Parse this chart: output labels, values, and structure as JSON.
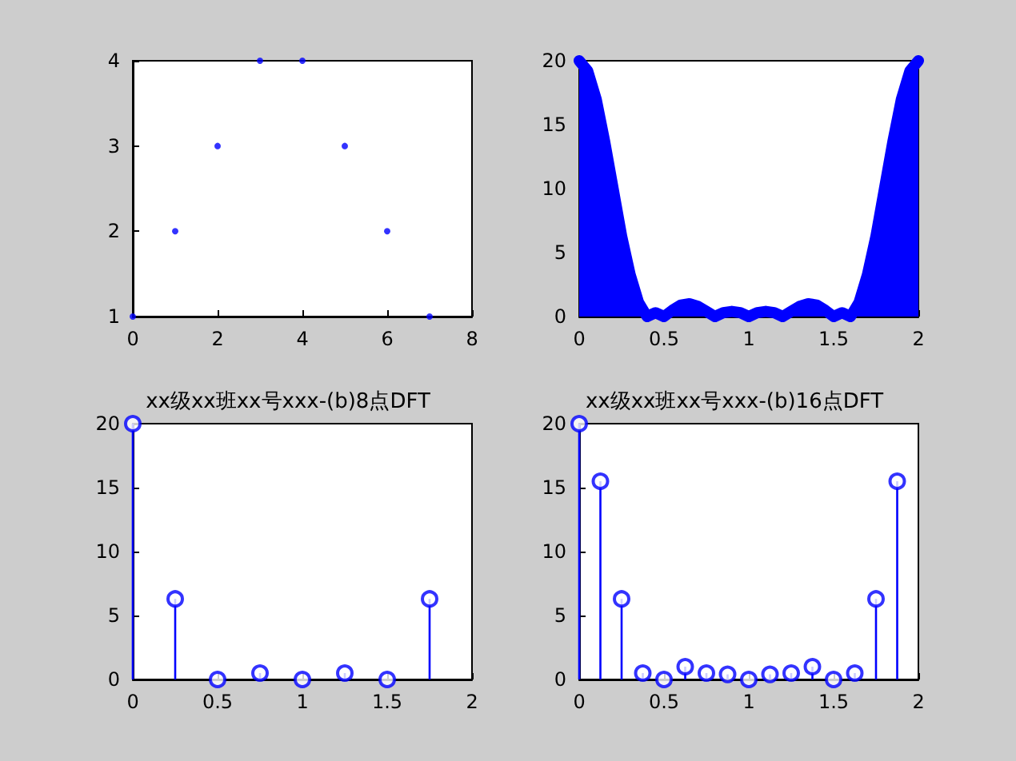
{
  "chart_data": [
    {
      "type": "scatter",
      "x": [
        0,
        1,
        2,
        3,
        4,
        5,
        6,
        7
      ],
      "values": [
        1,
        2,
        3,
        4,
        4,
        3,
        2,
        1
      ],
      "color": "#0000ff",
      "marker": "circle",
      "xlim": [
        0,
        8
      ],
      "xticks": [
        0,
        2,
        4,
        6,
        8
      ],
      "ylim": [
        1,
        4
      ],
      "yticks": [
        1,
        2,
        3,
        4
      ]
    },
    {
      "type": "area",
      "x": [
        0,
        0.05,
        0.1,
        0.15,
        0.2,
        0.25,
        0.3,
        0.35,
        0.4,
        0.45,
        0.5,
        0.55,
        0.6,
        0.65,
        0.7,
        0.75,
        0.8,
        0.85,
        0.9,
        0.95,
        1,
        1.05,
        1.1,
        1.15,
        1.2,
        1.25,
        1.3,
        1.35,
        1.4,
        1.45,
        1.5,
        1.55,
        1.6,
        1.65,
        1.7,
        1.75,
        1.8,
        1.85,
        1.9,
        1.95,
        2
      ],
      "values": [
        20,
        19.2,
        17,
        13.7,
        10,
        6.3,
        3.3,
        1.1,
        0,
        0.3,
        0,
        0.5,
        0.9,
        1,
        0.8,
        0.4,
        0,
        0.3,
        0.4,
        0.3,
        0,
        0.3,
        0.4,
        0.3,
        0,
        0.4,
        0.8,
        1,
        0.9,
        0.5,
        0,
        0.3,
        0,
        1.1,
        3.3,
        6.3,
        10,
        13.7,
        17,
        19.2,
        20
      ],
      "color": "#0000ff",
      "xlim": [
        0,
        2
      ],
      "xticks": [
        0,
        0.5,
        1,
        1.5,
        2
      ],
      "ylim": [
        0,
        20
      ],
      "yticks": [
        0,
        5,
        10,
        15,
        20
      ]
    },
    {
      "type": "lollipop",
      "title": "xx级xx班xx号xxx-(b)8点DFT",
      "x": [
        0,
        0.25,
        0.5,
        0.75,
        1,
        1.25,
        1.5,
        1.75
      ],
      "values": [
        20,
        6.3,
        0,
        0.5,
        0,
        0.5,
        0,
        6.3
      ],
      "color": "#0000ff",
      "marker": "circle",
      "xlim": [
        0,
        2
      ],
      "xticks": [
        0,
        0.5,
        1,
        1.5,
        2
      ],
      "ylim": [
        0,
        20
      ],
      "yticks": [
        0,
        5,
        10,
        15,
        20
      ]
    },
    {
      "type": "lollipop",
      "title": "xx级xx班xx号xxx-(b)16点DFT",
      "x": [
        0,
        0.125,
        0.25,
        0.375,
        0.5,
        0.625,
        0.75,
        0.875,
        1,
        1.125,
        1.25,
        1.375,
        1.5,
        1.625,
        1.75,
        1.875
      ],
      "values": [
        20,
        15.5,
        6.3,
        0.5,
        0,
        1,
        0.5,
        0.4,
        0,
        0.4,
        0.5,
        1,
        0,
        0.5,
        6.3,
        15.5
      ],
      "color": "#0000ff",
      "marker": "circle",
      "xlim": [
        0,
        2
      ],
      "xticks": [
        0,
        0.5,
        1,
        1.5,
        2
      ],
      "ylim": [
        0,
        20
      ],
      "yticks": [
        0,
        5,
        10,
        15,
        20
      ]
    }
  ]
}
